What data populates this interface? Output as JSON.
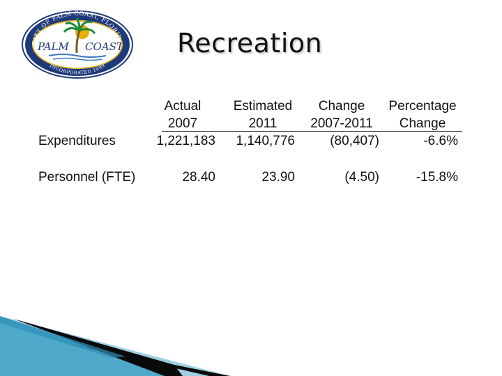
{
  "slide": {
    "title": "Recreation"
  },
  "logo": {
    "arc_text": "CITY OF PALM COAST, FLORIDA",
    "word_left": "PALM",
    "word_right": "COAST",
    "bottom_text": "INCORPORATED 1999",
    "colors": {
      "navy": "#1f3a7a",
      "gold": "#e8b000",
      "green": "#1f8a3a",
      "water": "#3a78c2"
    }
  },
  "table": {
    "headers": [
      {
        "line1": "Actual",
        "line2": "2007"
      },
      {
        "line1": "Estimated",
        "line2": "2011"
      },
      {
        "line1": "Change",
        "line2": "2007-2011"
      },
      {
        "line1": "Percentage",
        "line2": "Change"
      }
    ],
    "rows": [
      {
        "label": "Expenditures",
        "values": [
          "1,221,183",
          "1,140,776",
          "(80,407)",
          "-6.6%"
        ]
      },
      {
        "label": "Personnel (FTE)",
        "values": [
          "28.40",
          "23.90",
          "(4.50)",
          "-15.8%"
        ]
      }
    ]
  },
  "decoration": {
    "colors": {
      "teal": "#4fa9c9",
      "dark": "#0a0a0a",
      "light": "#9fd0e2"
    }
  }
}
